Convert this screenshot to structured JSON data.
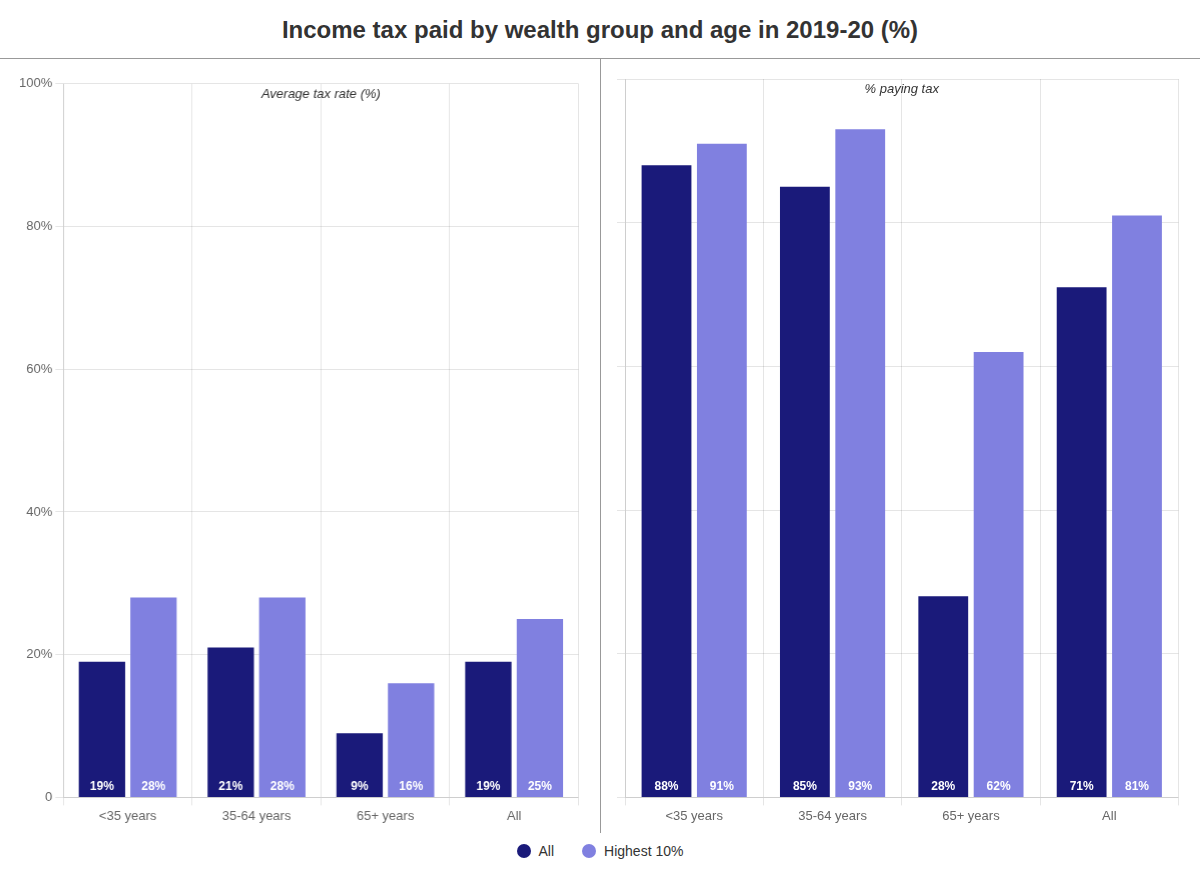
{
  "title": "Income tax paid by wealth group and age in 2019-20 (%)",
  "legend": "bottom",
  "chart_data": [
    {
      "type": "bar",
      "annotations": [
        "Average tax rate (%)"
      ],
      "categories": [
        "<35 years",
        "35-64 years",
        "65+ years",
        "All"
      ],
      "series": [
        {
          "name": "All",
          "color": "#1A1A7A",
          "values": [
            19,
            21,
            9,
            19
          ],
          "value_labels": [
            "19%",
            "21%",
            "9%",
            "19%"
          ]
        },
        {
          "name": "Highest 10%",
          "color": "#8080E0",
          "values": [
            28,
            28,
            16,
            25
          ],
          "value_labels": [
            "28%",
            "28%",
            "16%",
            "25%"
          ]
        }
      ],
      "ylim": [
        0,
        100
      ],
      "yticks": [
        0,
        {
          "value": 20,
          "label": "20%"
        },
        {
          "value": 40,
          "label": "40%"
        },
        {
          "value": 60,
          "label": "60%"
        },
        {
          "value": 80,
          "label": "80%"
        },
        {
          "value": 100,
          "label": "100%"
        }
      ],
      "grid": true,
      "data_labels": true
    },
    {
      "type": "bar",
      "annotations": [
        "% paying tax"
      ],
      "categories": [
        "<35 years",
        "35-64 years",
        "65+ years",
        "All"
      ],
      "series": [
        {
          "name": "All",
          "color": "#1A1A7A",
          "values": [
            88,
            85,
            28,
            71
          ],
          "value_labels": [
            "88%",
            "85%",
            "28%",
            "71%"
          ]
        },
        {
          "name": "Highest 10%",
          "color": "#8080E0",
          "values": [
            91,
            93,
            62,
            81
          ],
          "value_labels": [
            "91%",
            "93%",
            "62%",
            "81%"
          ]
        }
      ],
      "ylim": [
        0,
        100
      ],
      "yticks": [
        0,
        20,
        40,
        60,
        80,
        100
      ],
      "grid": true,
      "data_labels": true,
      "tick_labels": "x"
    }
  ]
}
